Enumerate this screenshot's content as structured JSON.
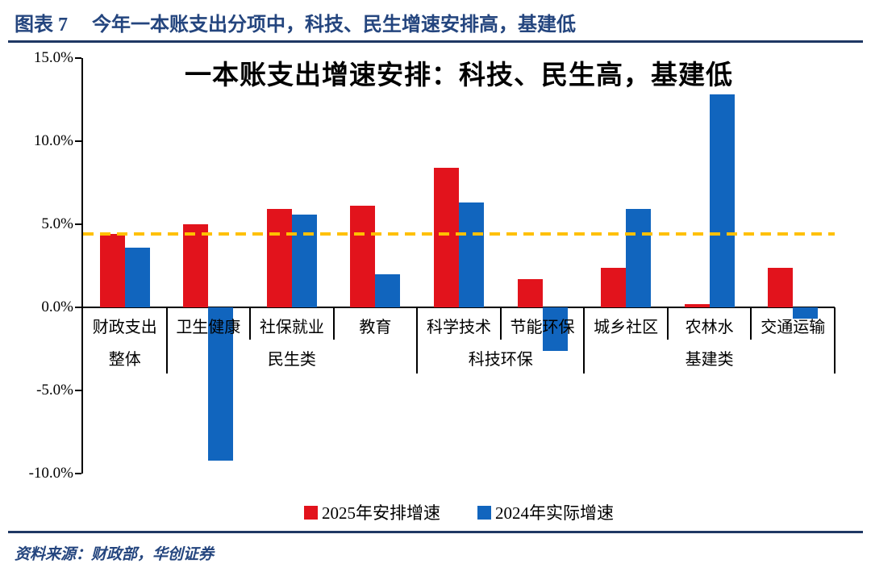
{
  "figure_header": {
    "label": "图表 7",
    "title": "今年一本账支出分项中，科技、民生增速安排高，基建低"
  },
  "source": "资料来源：财政部，华创证券",
  "colors": {
    "red_series": "#E2131C",
    "blue_series": "#1165BE",
    "reference_yellow": "#FFC000",
    "navy_text": "#24457E",
    "axis_black": "#000000"
  },
  "chart_data": {
    "type": "bar",
    "title": "一本账支出增速安排：科技、民生高，基建低",
    "categories": [
      "财政支出",
      "卫生健康",
      "社保就业",
      "教育",
      "科学技术",
      "节能环保",
      "城乡社区",
      "农林水",
      "交通运输"
    ],
    "groups": [
      {
        "label": "整体",
        "start": 0,
        "end": 0
      },
      {
        "label": "民生类",
        "start": 1,
        "end": 3
      },
      {
        "label": "科技环保",
        "start": 4,
        "end": 5
      },
      {
        "label": "基建类",
        "start": 6,
        "end": 8
      }
    ],
    "series": [
      {
        "name": "2025年安排增速",
        "color": "#E2131C",
        "values": [
          4.4,
          5.0,
          5.9,
          6.1,
          8.4,
          1.7,
          2.4,
          0.2,
          2.4
        ]
      },
      {
        "name": "2024年实际增速",
        "color": "#1165BE",
        "values": [
          3.6,
          -9.2,
          5.6,
          2.0,
          6.3,
          -2.6,
          5.9,
          12.8,
          -0.7
        ]
      }
    ],
    "reference_line": {
      "value": 4.4,
      "color": "#FFC000",
      "style": "dashed"
    },
    "ylim": [
      -10,
      15
    ],
    "yticks": [
      {
        "value": 15,
        "label": "15.0%"
      },
      {
        "value": 10,
        "label": "10.0%"
      },
      {
        "value": 5,
        "label": "5.0%"
      },
      {
        "value": 0,
        "label": "0.0%"
      },
      {
        "value": -5,
        "label": "-5.0%"
      },
      {
        "value": -10,
        "label": "-10.0%"
      }
    ],
    "ylabel": "",
    "xlabel": "",
    "grid": false,
    "legend_position": "bottom"
  }
}
